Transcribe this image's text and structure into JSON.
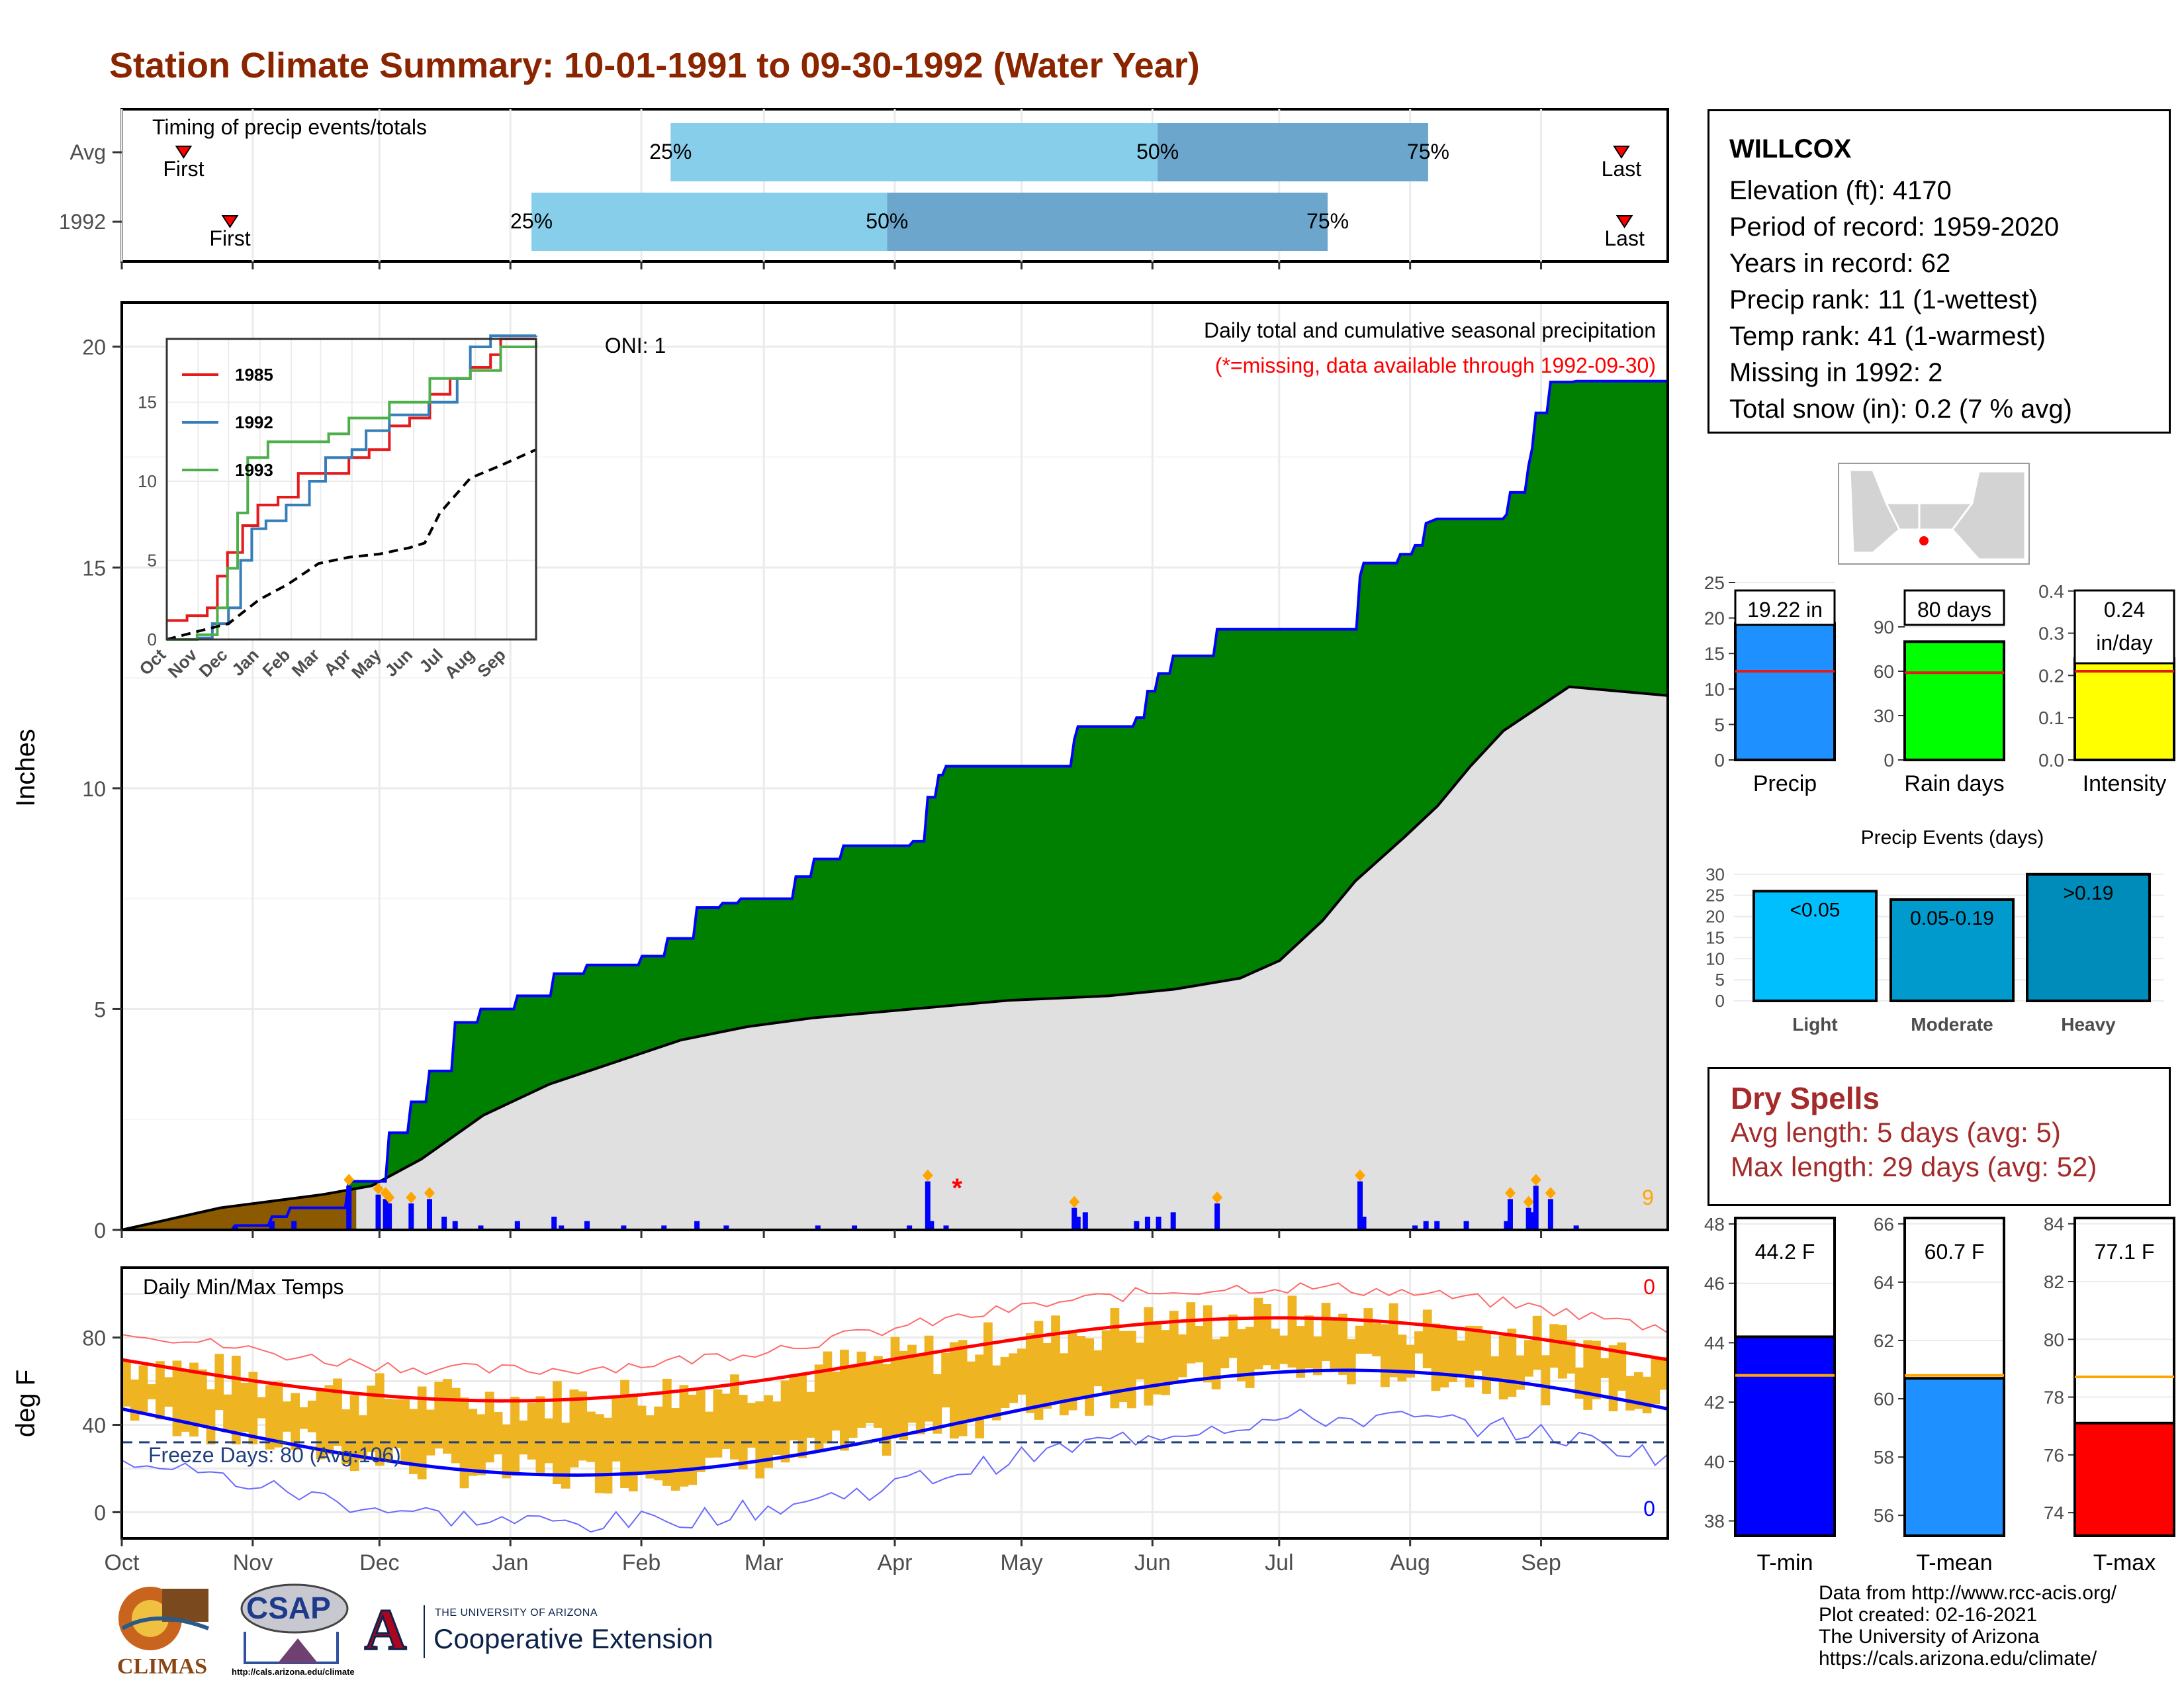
{
  "title": "Station Climate Summary: 10-01-1991 to 09-30-1992 (Water Year)",
  "timing": {
    "label": "Timing of precip events/totals",
    "rows": [
      {
        "name": "Avg",
        "first_label": "First",
        "last_label": "Last",
        "first": 0.04,
        "p25": 0.355,
        "p50": 0.67,
        "p75": 0.845,
        "last": 0.97
      },
      {
        "name": "1992",
        "first_label": "First",
        "last_label": "Last",
        "first": 0.07,
        "p25": 0.265,
        "p50": 0.495,
        "p75": 0.78,
        "last": 0.972
      }
    ],
    "pct_labels": [
      "25%",
      "50%",
      "75%"
    ]
  },
  "station": {
    "name": "WILLCOX",
    "lines": [
      "Elevation (ft): 4170",
      "Period of record: 1959-2020",
      "Years in record: 62",
      "Precip rank: 11 (1-wettest)",
      "Temp rank: 41 (1-warmest)",
      "Missing in 1992: 2",
      "Total snow (in): 0.2 (7 % avg)"
    ]
  },
  "months": [
    "Oct",
    "Nov",
    "Dec",
    "Jan",
    "Feb",
    "Mar",
    "Apr",
    "May",
    "Jun",
    "Jul",
    "Aug",
    "Sep"
  ],
  "chart_data": [
    {
      "type": "area",
      "name": "precip-main",
      "ylabel": "Inches",
      "ylim": [
        0,
        21
      ],
      "yticks": [
        0,
        5,
        10,
        15,
        20
      ],
      "note1": "Daily total and cumulative seasonal precipitation",
      "note2": "(*=missing, data available through 1992-09-30)",
      "oni": "ONI: 1",
      "count_label": "9",
      "cum_1992": [
        [
          0,
          0
        ],
        [
          30,
          0
        ],
        [
          31,
          0.1
        ],
        [
          40,
          0.1
        ],
        [
          41,
          0.3
        ],
        [
          45,
          0.3
        ],
        [
          46,
          0.5
        ],
        [
          61,
          0.5
        ],
        [
          62,
          1.1
        ],
        [
          72,
          1.1
        ],
        [
          73,
          2.2
        ],
        [
          78,
          2.2
        ],
        [
          79,
          2.9
        ],
        [
          83,
          2.9
        ],
        [
          84,
          3.6
        ],
        [
          90,
          3.6
        ],
        [
          91,
          4.7
        ],
        [
          97,
          4.7
        ],
        [
          98,
          5.0
        ],
        [
          107,
          5.0
        ],
        [
          108,
          5.3
        ],
        [
          117,
          5.3
        ],
        [
          118,
          5.8
        ],
        [
          126,
          5.8
        ],
        [
          127,
          6.0
        ],
        [
          141,
          6.0
        ],
        [
          142,
          6.2
        ],
        [
          148,
          6.2
        ],
        [
          149,
          6.6
        ],
        [
          156,
          6.6
        ],
        [
          157,
          7.3
        ],
        [
          163,
          7.3
        ],
        [
          164,
          7.4
        ],
        [
          168,
          7.4
        ],
        [
          169,
          7.5
        ],
        [
          183,
          7.5
        ],
        [
          184,
          8.0
        ],
        [
          188,
          8.0
        ],
        [
          189,
          8.4
        ],
        [
          196,
          8.4
        ],
        [
          197,
          8.7
        ],
        [
          215,
          8.7
        ],
        [
          216,
          8.8
        ],
        [
          219,
          8.8
        ],
        [
          220,
          9.8
        ],
        [
          222,
          9.8
        ],
        [
          223,
          10.3
        ],
        [
          224,
          10.3
        ],
        [
          225,
          10.5
        ],
        [
          259,
          10.5
        ],
        [
          260,
          11.1
        ],
        [
          261,
          11.4
        ],
        [
          276,
          11.4
        ],
        [
          277,
          11.6
        ],
        [
          279,
          11.6
        ],
        [
          280,
          12.2
        ],
        [
          282,
          12.2
        ],
        [
          283,
          12.6
        ],
        [
          286,
          12.6
        ],
        [
          287,
          13.0
        ],
        [
          298,
          13.0
        ],
        [
          299,
          13.6
        ],
        [
          337,
          13.6
        ],
        [
          338,
          14.8
        ],
        [
          339,
          15.1
        ],
        [
          348,
          15.1
        ],
        [
          349,
          15.3
        ],
        [
          352,
          15.3
        ],
        [
          353,
          15.5
        ],
        [
          355,
          15.5
        ],
        [
          356,
          16.0
        ],
        [
          359,
          16.1
        ],
        [
          377,
          16.1
        ],
        [
          378,
          16.2
        ],
        [
          379,
          16.7
        ],
        [
          383,
          16.7
        ],
        [
          384,
          17.3
        ],
        [
          385,
          17.7
        ],
        [
          386,
          18.5
        ],
        [
          389,
          18.5
        ],
        [
          390,
          19.2
        ],
        [
          396,
          19.2
        ],
        [
          397,
          19.22
        ],
        [
          422,
          19.22
        ]
      ],
      "avg_cum": [
        [
          0,
          0
        ],
        [
          30,
          0.5
        ],
        [
          61,
          0.8
        ],
        [
          76,
          1.0
        ],
        [
          91,
          1.6
        ],
        [
          110,
          2.6
        ],
        [
          130,
          3.3
        ],
        [
          150,
          3.8
        ],
        [
          170,
          4.3
        ],
        [
          190,
          4.6
        ],
        [
          210,
          4.8
        ],
        [
          240,
          5.0
        ],
        [
          270,
          5.2
        ],
        [
          300,
          5.3
        ],
        [
          320,
          5.45
        ],
        [
          340,
          5.7
        ],
        [
          352,
          6.1
        ],
        [
          365,
          7.0
        ],
        [
          375,
          7.9
        ],
        [
          390,
          8.9
        ],
        [
          400,
          9.6
        ],
        [
          410,
          10.5
        ],
        [
          420,
          11.3
        ],
        [
          440,
          12.3
        ],
        [
          470,
          12.1
        ],
        [
          515,
          12.0
        ],
        [
          560,
          12.0
        ]
      ],
      "daily": [
        [
          31,
          0.1
        ],
        [
          41,
          0.2
        ],
        [
          47,
          0.2
        ],
        [
          62,
          1.0
        ],
        [
          70,
          0.8
        ],
        [
          72,
          0.7
        ],
        [
          73,
          0.6
        ],
        [
          79,
          0.6
        ],
        [
          84,
          0.7
        ],
        [
          88,
          0.3
        ],
        [
          91,
          0.2
        ],
        [
          98,
          0.1
        ],
        [
          108,
          0.2
        ],
        [
          118,
          0.3
        ],
        [
          120,
          0.1
        ],
        [
          127,
          0.2
        ],
        [
          137,
          0.1
        ],
        [
          148,
          0.1
        ],
        [
          157,
          0.2
        ],
        [
          165,
          0.1
        ],
        [
          190,
          0.1
        ],
        [
          200,
          0.1
        ],
        [
          215,
          0.1
        ],
        [
          220,
          1.1
        ],
        [
          221,
          0.2
        ],
        [
          225,
          0.1
        ],
        [
          260,
          0.5
        ],
        [
          261,
          0.3
        ],
        [
          263,
          0.4
        ],
        [
          277,
          0.2
        ],
        [
          280,
          0.3
        ],
        [
          283,
          0.3
        ],
        [
          287,
          0.4
        ],
        [
          299,
          0.6
        ],
        [
          338,
          1.1
        ],
        [
          339,
          0.3
        ],
        [
          353,
          0.1
        ],
        [
          356,
          0.2
        ],
        [
          359,
          0.2
        ],
        [
          367,
          0.2
        ],
        [
          378,
          0.2
        ],
        [
          379,
          0.7
        ],
        [
          384,
          0.5
        ],
        [
          385,
          0.4
        ],
        [
          386,
          1.0
        ],
        [
          390,
          0.7
        ],
        [
          397,
          0.1
        ]
      ]
    },
    {
      "type": "line",
      "name": "inset-cumulative",
      "categories": [
        "Oct",
        "Nov",
        "Dec",
        "Jan",
        "Feb",
        "Mar",
        "Apr",
        "May",
        "Jun",
        "Jul",
        "Aug",
        "Sep"
      ],
      "ylim": [
        0,
        19
      ],
      "yticks": [
        0,
        5,
        10,
        15
      ],
      "series": [
        {
          "name": "1985",
          "color": "#E41A1C",
          "points": [
            [
              0,
              1.2
            ],
            [
              20,
              1.5
            ],
            [
              40,
              2.0
            ],
            [
              50,
              4.0
            ],
            [
              60,
              5.5
            ],
            [
              75,
              7.2
            ],
            [
              90,
              8.5
            ],
            [
              110,
              9.0
            ],
            [
              130,
              10.5
            ],
            [
              160,
              10.5
            ],
            [
              180,
              11.5
            ],
            [
              200,
              12.0
            ],
            [
              220,
              13.5
            ],
            [
              240,
              14.0
            ],
            [
              260,
              15.5
            ],
            [
              280,
              16.5
            ],
            [
              300,
              17.2
            ],
            [
              320,
              18.0
            ],
            [
              330,
              19.0
            ],
            [
              345,
              19.0
            ],
            [
              365,
              19.0
            ]
          ]
        },
        {
          "name": "1992",
          "color": "#377EB8",
          "points": [
            [
              0,
              0
            ],
            [
              30,
              0.1
            ],
            [
              45,
              1.0
            ],
            [
              61,
              2.0
            ],
            [
              73,
              5.0
            ],
            [
              84,
              7.0
            ],
            [
              98,
              7.5
            ],
            [
              118,
              8.5
            ],
            [
              141,
              10.0
            ],
            [
              157,
              11.5
            ],
            [
              183,
              12.0
            ],
            [
              197,
              13.2
            ],
            [
              220,
              14.2
            ],
            [
              259,
              15.0
            ],
            [
              287,
              16.5
            ],
            [
              300,
              18.5
            ],
            [
              320,
              19.2
            ],
            [
              365,
              19.22
            ]
          ]
        },
        {
          "name": "1993",
          "color": "#4DAF4A",
          "points": [
            [
              0,
              0
            ],
            [
              30,
              0.3
            ],
            [
              50,
              2.0
            ],
            [
              60,
              4.5
            ],
            [
              70,
              8.0
            ],
            [
              80,
              11.5
            ],
            [
              100,
              12.5
            ],
            [
              140,
              12.5
            ],
            [
              160,
              13.0
            ],
            [
              180,
              14.0
            ],
            [
              220,
              15.0
            ],
            [
              260,
              16.5
            ],
            [
              300,
              17.0
            ],
            [
              330,
              18.5
            ],
            [
              365,
              18.8
            ]
          ]
        },
        {
          "name": "avg",
          "color": "#000000",
          "dashed": true,
          "points": [
            [
              0,
              0
            ],
            [
              30,
              0.5
            ],
            [
              61,
              1.0
            ],
            [
              91,
              2.5
            ],
            [
              120,
              3.5
            ],
            [
              150,
              4.8
            ],
            [
              180,
              5.2
            ],
            [
              210,
              5.4
            ],
            [
              240,
              5.8
            ],
            [
              255,
              6.1
            ],
            [
              270,
              8.0
            ],
            [
              300,
              10.2
            ],
            [
              330,
              11.0
            ],
            [
              365,
              12.0
            ]
          ]
        }
      ]
    },
    {
      "type": "bar",
      "name": "precip-stats",
      "categories": [
        "Precip",
        "Rain days",
        "Intensity"
      ],
      "values": [
        19.22,
        80,
        0.24
      ],
      "labels": [
        "19.22 in",
        "80 days",
        "0.24\nin/day"
      ],
      "averages": [
        12.5,
        59,
        0.21
      ],
      "ylims": [
        [
          0,
          25
        ],
        [
          0,
          120
        ],
        [
          0,
          0.42
        ]
      ],
      "yticks": [
        [
          "0",
          "5",
          "10",
          "15",
          "20",
          "25"
        ],
        [
          "0",
          "30",
          "60",
          "90"
        ],
        [
          "0.0",
          "0.1",
          "0.2",
          "0.3",
          "0.4"
        ]
      ],
      "colors": [
        "#1E90FF",
        "#00FF00",
        "#FFFF00"
      ]
    },
    {
      "type": "bar",
      "name": "precip-events",
      "title": "Precip Events (days)",
      "categories": [
        "Light",
        "Moderate",
        "Heavy"
      ],
      "bar_labels": [
        "<0.05",
        "0.05-0.19",
        ">0.19"
      ],
      "values": [
        26,
        24,
        30
      ],
      "ylim": [
        0,
        32
      ],
      "yticks": [
        0,
        5,
        10,
        15,
        20,
        25,
        30
      ],
      "colors": [
        "#00BFFF",
        "#009ACD",
        "#008CBA"
      ]
    },
    {
      "type": "line",
      "name": "daily-temps",
      "label": "Daily Min/Max Temps",
      "ylabel": "deg F",
      "ylim": [
        -12,
        112
      ],
      "yticks": [
        0,
        40,
        80
      ],
      "freeze_label": "Freeze Days: 80 (Avg:106)",
      "freeze_line": 32,
      "max_count_label": "0",
      "min_count_label": "0"
    },
    {
      "type": "bar",
      "name": "temp-stats",
      "categories": [
        "T-min",
        "T-mean",
        "T-max"
      ],
      "values": [
        44.2,
        60.7,
        77.1
      ],
      "labels": [
        "44.2 F",
        "60.7 F",
        "77.1 F"
      ],
      "averages": [
        42.9,
        60.8,
        78.7
      ],
      "ylims": [
        [
          37.5,
          48.2
        ],
        [
          55.3,
          66.2
        ],
        [
          73.2,
          84.2
        ]
      ],
      "yticks": [
        [
          "38",
          "40",
          "42",
          "44",
          "46",
          "48"
        ],
        [
          "56",
          "58",
          "60",
          "62",
          "64",
          "66"
        ],
        [
          "74",
          "76",
          "78",
          "80",
          "82",
          "84"
        ]
      ],
      "colors": [
        "#0000FF",
        "#1E90FF",
        "#FF0000"
      ]
    }
  ],
  "dry_spells": {
    "title": "Dry Spells",
    "avg": "Avg length: 5 days (avg: 5)",
    "max": "Max length: 29 days (avg: 52)"
  },
  "footer": [
    "Data from http://www.rcc-acis.org/",
    "Plot created: 02-16-2021",
    "The University of Arizona",
    "https://cals.arizona.edu/climate/"
  ],
  "logos": {
    "climas": "CLIMAS",
    "csap": "CSAP",
    "csap_url": "http://cals.arizona.edu/climate",
    "ua_small": "THE UNIVERSITY OF ARIZONA",
    "ua_big": "Cooperative Extension",
    "ua_letter": "A"
  },
  "colors": {
    "title": "#8B2500",
    "green": "#008000",
    "brown": "#8B5A00",
    "blue": "#0000FF",
    "avg_fill": "#E0E0E0",
    "light_blue": "#87CEEB",
    "mid_blue": "#6CA6CD",
    "orange": "#EEB422"
  }
}
